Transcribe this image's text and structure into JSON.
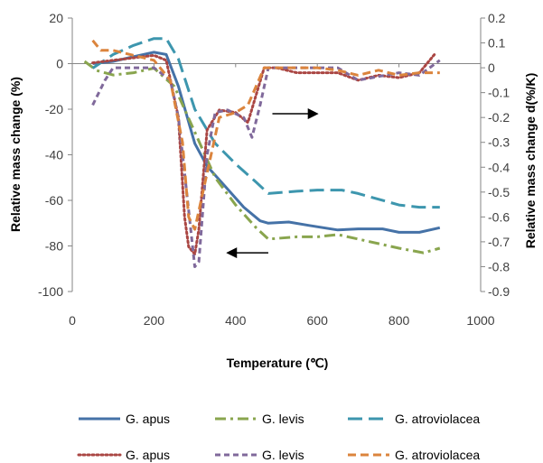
{
  "chart_data": {
    "type": "line",
    "xlabel": "Temperature (℃)",
    "ylabel_left": "Relative mass change (%)",
    "ylabel_right": "Relative mass change d(%/K)",
    "xlim": [
      0,
      1000
    ],
    "xticks": [
      "0",
      "200",
      "400",
      "600",
      "800",
      "1000"
    ],
    "ylim_left": [
      -100,
      20
    ],
    "yticks_left": [
      "20",
      "0",
      "-20",
      "-40",
      "-60",
      "-80",
      "-100"
    ],
    "ylim_right": [
      -0.9,
      0.2
    ],
    "yticks_right": [
      "0.2",
      "0.1",
      "0",
      "-0.1",
      "-0.2",
      "-0.3",
      "-0.4",
      "-0.5",
      "-0.6",
      "-0.7",
      "-0.8",
      "-0.9"
    ],
    "grid": false,
    "legend_position": "bottom",
    "series": [
      {
        "name": "G. apus",
        "axis": "left",
        "style": "solid",
        "color": "#4572A7",
        "x": [
          50,
          100,
          150,
          200,
          230,
          260,
          300,
          330,
          380,
          420,
          460,
          480,
          530,
          580,
          650,
          700,
          760,
          800,
          850,
          900
        ],
        "y": [
          0,
          1,
          3,
          5,
          4,
          -10,
          -35,
          -45,
          -55,
          -63,
          -69,
          -70,
          -69.5,
          -71,
          -73,
          -72.5,
          -72.5,
          -74,
          -74,
          -72
        ]
      },
      {
        "name": "G. levis",
        "axis": "left",
        "style": "dashdot",
        "color": "#89A54E",
        "x": [
          30,
          60,
          100,
          150,
          200,
          250,
          300,
          350,
          400,
          450,
          480,
          550,
          600,
          650,
          700,
          800,
          860,
          900
        ],
        "y": [
          1,
          -3,
          -5,
          -4,
          -2,
          -10,
          -30,
          -50,
          -62,
          -72,
          -77,
          -76,
          -76,
          -75,
          -77,
          -81,
          -83,
          -81
        ]
      },
      {
        "name": "G. atroviolacea",
        "axis": "left",
        "style": "longdash",
        "color": "#3D96AE",
        "x": [
          50,
          100,
          150,
          200,
          230,
          260,
          300,
          350,
          400,
          450,
          480,
          550,
          600,
          660,
          700,
          800,
          850,
          900
        ],
        "y": [
          -2,
          4,
          8,
          11,
          11,
          2,
          -20,
          -35,
          -44,
          -52,
          -57,
          -56,
          -55.5,
          -55.5,
          -57,
          -62,
          -63,
          -63
        ]
      },
      {
        "name": "G. apus",
        "axis": "right",
        "style": "dotted",
        "color": "#AA4643",
        "x": [
          50,
          100,
          150,
          200,
          230,
          260,
          275,
          285,
          300,
          310,
          330,
          360,
          400,
          430,
          470,
          500,
          550,
          600,
          650,
          700,
          750,
          800,
          850,
          890
        ],
        "y": [
          0.02,
          0.03,
          0.04,
          0.05,
          0.03,
          -0.2,
          -0.6,
          -0.72,
          -0.75,
          -0.65,
          -0.25,
          -0.17,
          -0.18,
          -0.22,
          0.0,
          0.0,
          -0.02,
          -0.02,
          -0.02,
          -0.05,
          -0.03,
          -0.04,
          -0.02,
          0.06
        ]
      },
      {
        "name": "G. levis",
        "axis": "right",
        "style": "shortdash",
        "color": "#80699B",
        "x": [
          50,
          80,
          100,
          150,
          200,
          240,
          260,
          280,
          300,
          310,
          330,
          350,
          380,
          420,
          440,
          460,
          480,
          550,
          600,
          650,
          700,
          800,
          850,
          900
        ],
        "y": [
          -0.15,
          -0.05,
          0.0,
          0.0,
          0.0,
          -0.05,
          -0.2,
          -0.5,
          -0.8,
          -0.78,
          -0.35,
          -0.18,
          -0.17,
          -0.2,
          -0.28,
          -0.15,
          0.0,
          0.0,
          0.0,
          0.0,
          -0.05,
          -0.02,
          -0.03,
          0.03
        ]
      },
      {
        "name": "G. atroviolacea",
        "axis": "right",
        "style": "dashed",
        "color": "#DB843D",
        "x": [
          50,
          70,
          100,
          150,
          200,
          240,
          270,
          285,
          300,
          320,
          360,
          400,
          430,
          470,
          500,
          550,
          600,
          650,
          700,
          750,
          800,
          850,
          900
        ],
        "y": [
          0.11,
          0.07,
          0.07,
          0.05,
          0.03,
          -0.05,
          -0.3,
          -0.6,
          -0.65,
          -0.5,
          -0.2,
          -0.18,
          -0.15,
          0.0,
          0.0,
          0.0,
          0.0,
          -0.01,
          -0.03,
          -0.01,
          -0.03,
          -0.02,
          -0.02
        ]
      }
    ],
    "annotations": [
      {
        "type": "arrow",
        "direction": "right",
        "from_x": 490,
        "to_x": 600,
        "y_left": -22
      },
      {
        "type": "arrow",
        "direction": "left",
        "from_x": 480,
        "to_x": 380,
        "y_left": -83
      }
    ]
  }
}
